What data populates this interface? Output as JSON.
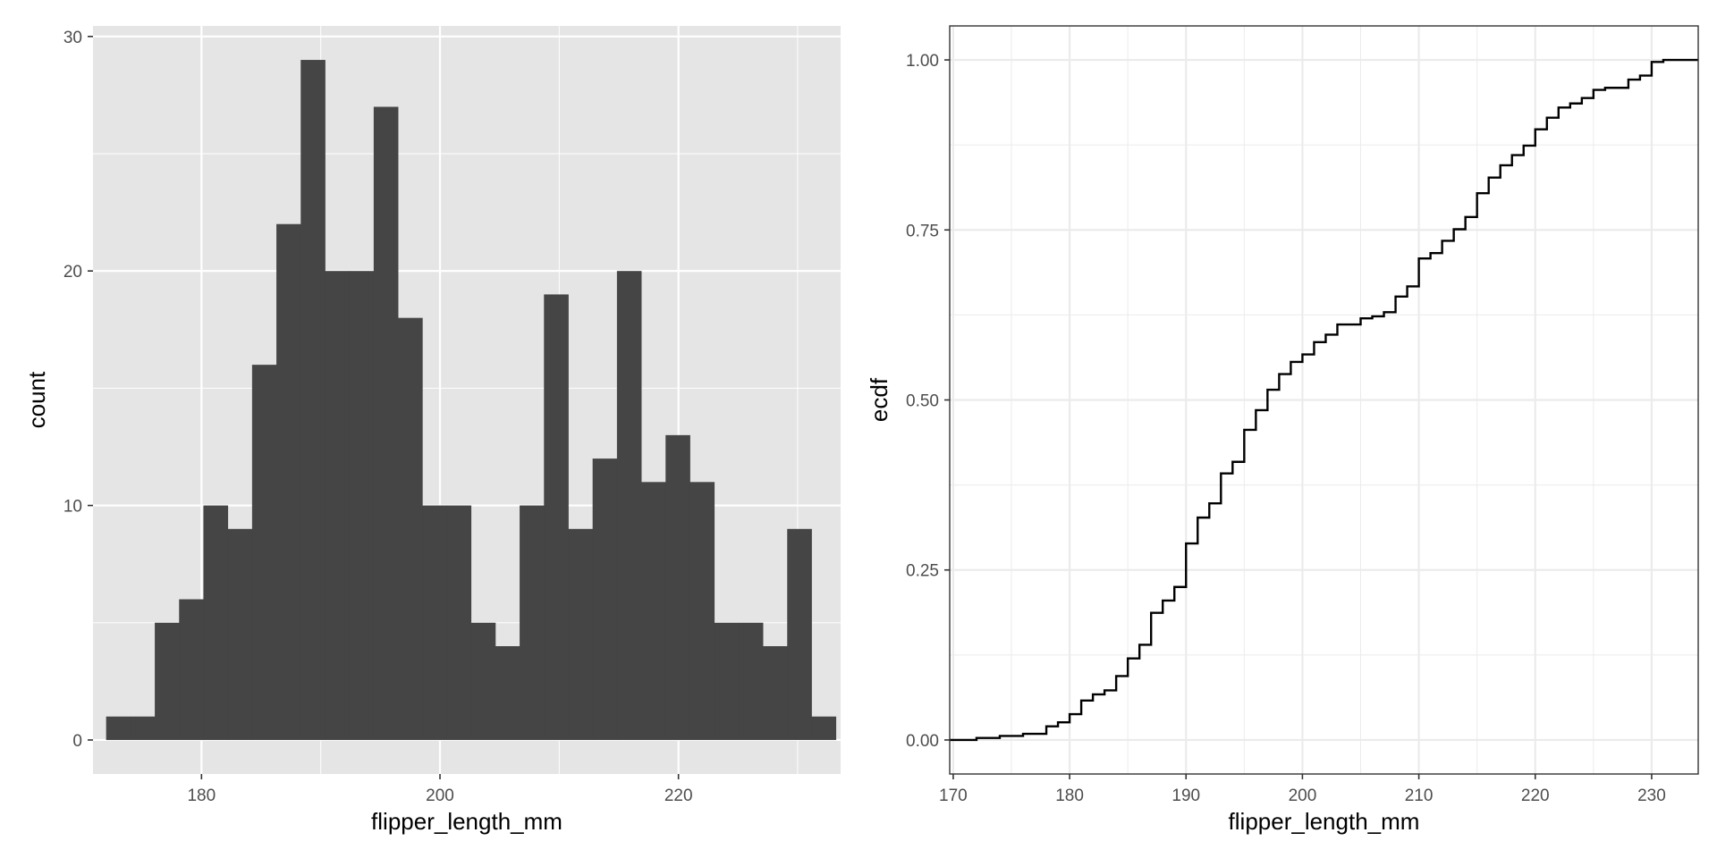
{
  "chart_data": [
    {
      "type": "bar",
      "subtype": "histogram",
      "theme": "ggplot-gray",
      "xlabel": "flipper_length_mm",
      "ylabel": "count",
      "xlim": [
        170.9,
        233.6
      ],
      "ylim": [
        -1.45,
        30.45
      ],
      "xticks": [
        180,
        200,
        220
      ],
      "yticks": [
        0,
        10,
        20,
        30
      ],
      "bin_width": 2.04,
      "bin_start": 172,
      "bins": [
        {
          "x0": 172.0,
          "x1": 174.04,
          "count": 1
        },
        {
          "x0": 174.04,
          "x1": 176.08,
          "count": 1
        },
        {
          "x0": 176.08,
          "x1": 178.12,
          "count": 5
        },
        {
          "x0": 178.12,
          "x1": 180.16,
          "count": 6
        },
        {
          "x0": 180.16,
          "x1": 182.2,
          "count": 10
        },
        {
          "x0": 182.2,
          "x1": 184.24,
          "count": 9
        },
        {
          "x0": 184.24,
          "x1": 186.28,
          "count": 16
        },
        {
          "x0": 186.28,
          "x1": 188.32,
          "count": 22
        },
        {
          "x0": 188.32,
          "x1": 190.36,
          "count": 29
        },
        {
          "x0": 190.36,
          "x1": 192.4,
          "count": 20
        },
        {
          "x0": 192.4,
          "x1": 194.44,
          "count": 20
        },
        {
          "x0": 194.44,
          "x1": 196.48,
          "count": 27
        },
        {
          "x0": 196.48,
          "x1": 198.52,
          "count": 18
        },
        {
          "x0": 198.52,
          "x1": 200.56,
          "count": 10
        },
        {
          "x0": 200.56,
          "x1": 202.6,
          "count": 10
        },
        {
          "x0": 202.6,
          "x1": 204.64,
          "count": 5
        },
        {
          "x0": 204.64,
          "x1": 206.68,
          "count": 4
        },
        {
          "x0": 206.68,
          "x1": 208.72,
          "count": 10
        },
        {
          "x0": 208.72,
          "x1": 210.76,
          "count": 19
        },
        {
          "x0": 210.76,
          "x1": 212.8,
          "count": 9
        },
        {
          "x0": 212.8,
          "x1": 214.84,
          "count": 12
        },
        {
          "x0": 214.84,
          "x1": 216.88,
          "count": 20
        },
        {
          "x0": 216.88,
          "x1": 218.92,
          "count": 11
        },
        {
          "x0": 218.92,
          "x1": 220.96,
          "count": 13
        },
        {
          "x0": 220.96,
          "x1": 223.0,
          "count": 11
        },
        {
          "x0": 223.0,
          "x1": 225.04,
          "count": 5
        },
        {
          "x0": 225.04,
          "x1": 227.08,
          "count": 5
        },
        {
          "x0": 227.08,
          "x1": 229.12,
          "count": 4
        },
        {
          "x0": 229.12,
          "x1": 231.16,
          "count": 9
        },
        {
          "x0": 231.16,
          "x1": 233.2,
          "count": 1
        }
      ],
      "colors": {
        "bar": "#454545",
        "panel": "#e5e5e5",
        "grid": "#ffffff"
      }
    },
    {
      "type": "line",
      "subtype": "ecdf-step",
      "theme": "ggplot-bw",
      "xlabel": "flipper_length_mm",
      "ylabel": "ecdf",
      "xlim": [
        169.7,
        234.0
      ],
      "ylim": [
        -0.05,
        1.05
      ],
      "xticks": [
        170,
        180,
        190,
        200,
        210,
        220,
        230
      ],
      "yticks": [
        0,
        0.25,
        0.5,
        0.75,
        1
      ],
      "ytick_labels": [
        "0.00",
        "0.25",
        "0.50",
        "0.75",
        "1.00"
      ],
      "steps": [
        [
          172,
          0.003
        ],
        [
          174,
          0.006
        ],
        [
          176,
          0.009
        ],
        [
          178,
          0.02
        ],
        [
          179,
          0.026
        ],
        [
          180,
          0.038
        ],
        [
          181,
          0.058
        ],
        [
          182,
          0.067
        ],
        [
          183,
          0.073
        ],
        [
          184,
          0.094
        ],
        [
          185,
          0.12
        ],
        [
          186,
          0.14
        ],
        [
          187,
          0.187
        ],
        [
          188,
          0.205
        ],
        [
          189,
          0.225
        ],
        [
          190,
          0.289
        ],
        [
          191,
          0.327
        ],
        [
          192,
          0.348
        ],
        [
          193,
          0.392
        ],
        [
          194,
          0.409
        ],
        [
          195,
          0.456
        ],
        [
          196,
          0.485
        ],
        [
          197,
          0.515
        ],
        [
          198,
          0.538
        ],
        [
          199,
          0.556
        ],
        [
          200,
          0.567
        ],
        [
          201,
          0.585
        ],
        [
          202,
          0.596
        ],
        [
          203,
          0.611
        ],
        [
          205,
          0.62
        ],
        [
          206,
          0.623
        ],
        [
          207,
          0.629
        ],
        [
          208,
          0.652
        ],
        [
          209,
          0.667
        ],
        [
          210,
          0.708
        ],
        [
          211,
          0.716
        ],
        [
          212,
          0.734
        ],
        [
          213,
          0.751
        ],
        [
          214,
          0.769
        ],
        [
          215,
          0.804
        ],
        [
          216,
          0.827
        ],
        [
          217,
          0.845
        ],
        [
          218,
          0.86
        ],
        [
          219,
          0.874
        ],
        [
          220,
          0.898
        ],
        [
          221,
          0.915
        ],
        [
          222,
          0.93
        ],
        [
          223,
          0.936
        ],
        [
          224,
          0.944
        ],
        [
          225,
          0.956
        ],
        [
          226,
          0.959
        ],
        [
          228,
          0.971
        ],
        [
          229,
          0.977
        ],
        [
          230,
          0.997
        ],
        [
          231,
          1.0
        ]
      ],
      "colors": {
        "line": "#000000",
        "panel": "#ffffff",
        "grid": "#ebebeb",
        "border": "#333333"
      }
    }
  ]
}
